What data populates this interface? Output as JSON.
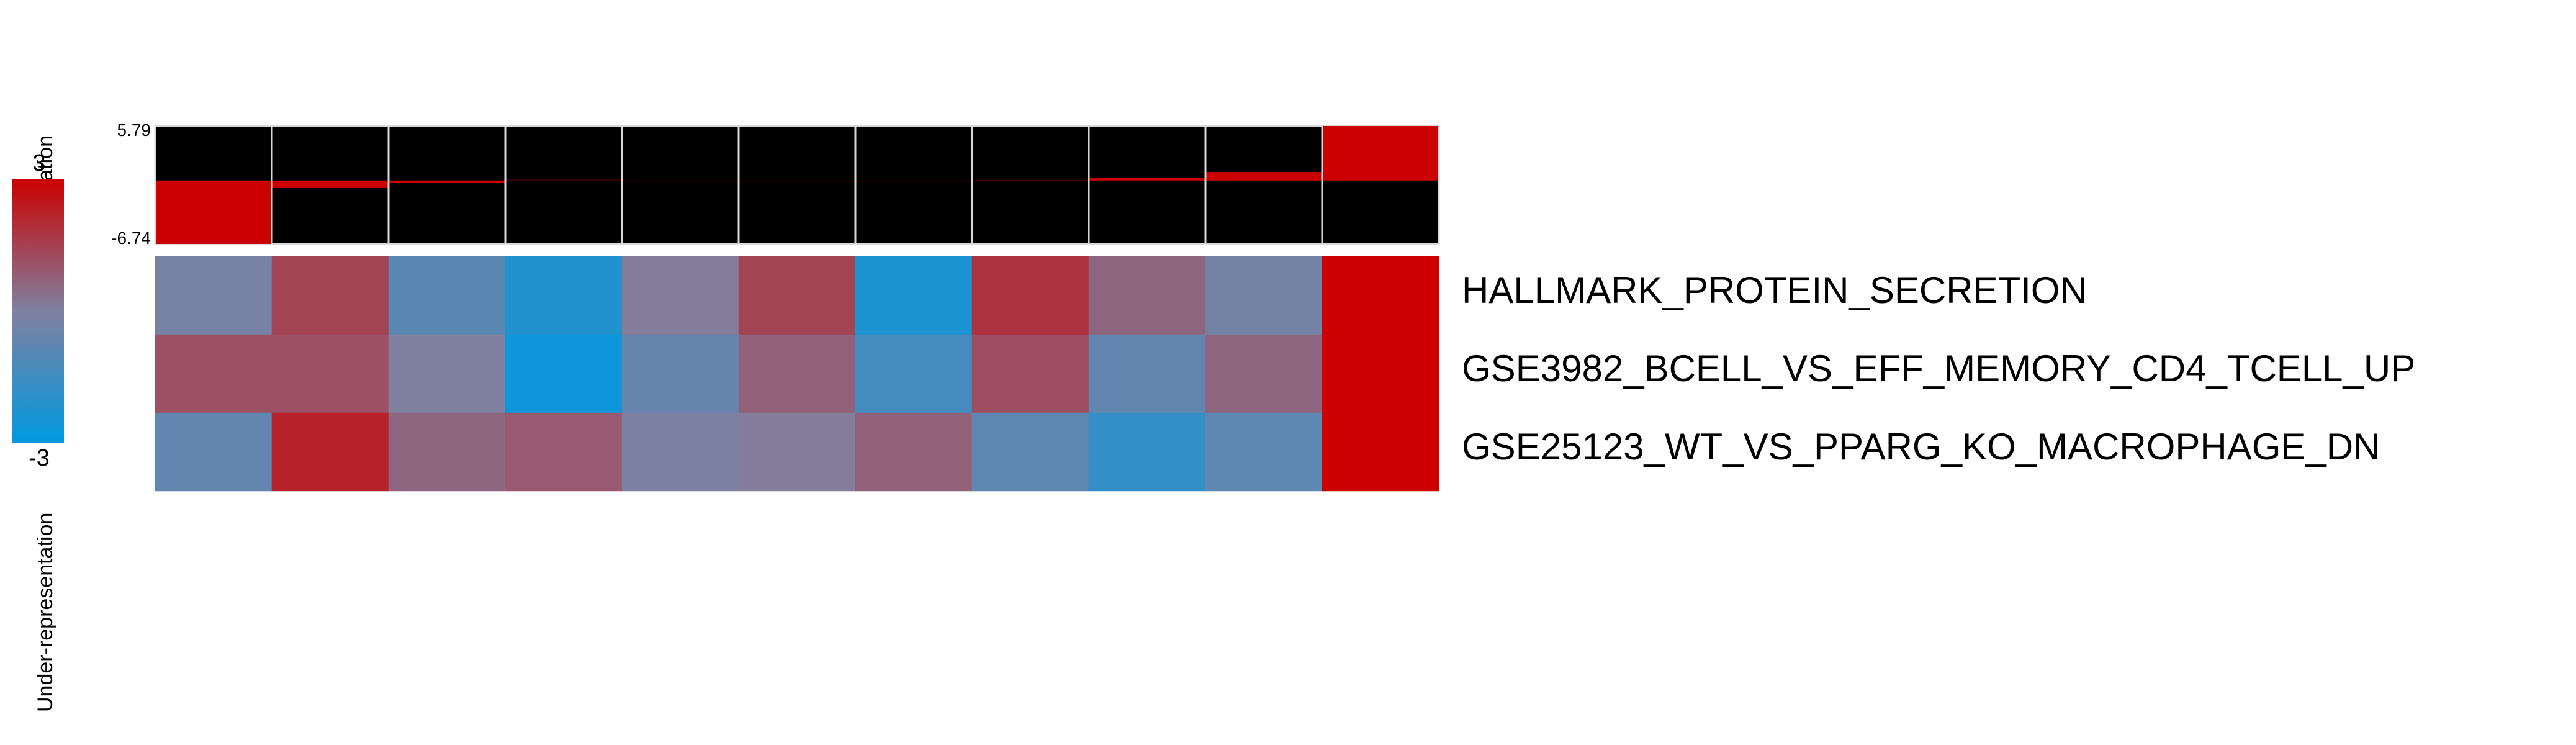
{
  "legend": {
    "top_label": "Over-representation",
    "bottom_label": "Under-representation",
    "max_label": "3",
    "min_label": "-3",
    "high_color": "#cc0000",
    "mid_color": "#8080a0",
    "low_color": "#0099e0"
  },
  "bar_axis": {
    "max_label": "5.79",
    "min_label": "-6.74"
  },
  "chart_data": {
    "type": "heatmap",
    "color_scale": {
      "min": -3,
      "max": 3
    },
    "rows": [
      "HALLMARK_PROTEIN_SECRETION",
      "GSE3982_BCELL_VS_EFF_MEMORY_CD4_TCELL_UP",
      "GSE25123_WT_VS_PPARG_KO_MACROPHAGE_DN"
    ],
    "values": [
      [
        -0.2,
        1.4,
        -0.9,
        -2.2,
        0.1,
        1.4,
        -2.3,
        1.8,
        0.6,
        -0.3,
        3.0
      ],
      [
        1.1,
        1.1,
        0.0,
        -2.7,
        -0.6,
        0.7,
        -1.4,
        1.2,
        -0.7,
        0.6,
        3.0
      ],
      [
        -0.7,
        2.2,
        0.6,
        0.9,
        -0.1,
        0.1,
        0.7,
        -0.8,
        -1.8,
        -0.8,
        3.0
      ]
    ],
    "bar_values": [
      -6.74,
      -0.8,
      -0.25,
      0.1,
      0.0,
      0.0,
      0.0,
      0.05,
      0.3,
      0.9,
      5.79
    ],
    "bar_range": [
      -6.74,
      5.79
    ]
  }
}
